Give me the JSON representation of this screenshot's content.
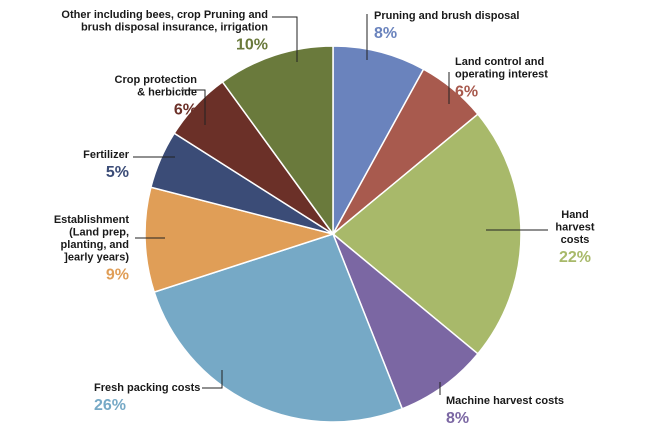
{
  "chart_data": {
    "type": "pie",
    "title": "",
    "slices": [
      {
        "label": [
          "Pruning and brush disposal"
        ],
        "percent_label": "8%",
        "value": 8,
        "color": "#6a83bd",
        "pct_color": "#6a83bd"
      },
      {
        "label": [
          "Land control and",
          "operating interest"
        ],
        "percent_label": "6%",
        "value": 6,
        "color": "#a85a4e",
        "pct_color": "#a85a4e"
      },
      {
        "label": [
          "Hand",
          "harvest",
          "costs"
        ],
        "percent_label": "22%",
        "value": 22,
        "color": "#a8b96a",
        "pct_color": "#a8b96a"
      },
      {
        "label": [
          "Machine harvest costs"
        ],
        "percent_label": "8%",
        "value": 8,
        "color": "#7b67a3",
        "pct_color": "#7b67a3"
      },
      {
        "label": [
          "Fresh packing costs"
        ],
        "percent_label": "26%",
        "value": 26,
        "color": "#76a9c6",
        "pct_color": "#76a9c6"
      },
      {
        "label": [
          "Establishment",
          "(Land prep,",
          "planting, and",
          "]early years)"
        ],
        "percent_label": "9%",
        "value": 9,
        "color": "#e09e57",
        "pct_color": "#e09e57"
      },
      {
        "label": [
          "Fertilizer"
        ],
        "percent_label": "5%",
        "value": 5,
        "color": "#3b4c77",
        "pct_color": "#3b4c77"
      },
      {
        "label": [
          "Crop protection",
          "& herbicide"
        ],
        "percent_label": "6%",
        "value": 6,
        "color": "#6b3028",
        "pct_color": "#6b3028"
      },
      {
        "label": [
          "Other including bees, crop Pruning and",
          "brush disposal insurance, irrigation"
        ],
        "percent_label": "10%",
        "value": 10,
        "color": "#6a7a3c",
        "pct_color": "#6a7a3c"
      }
    ]
  }
}
